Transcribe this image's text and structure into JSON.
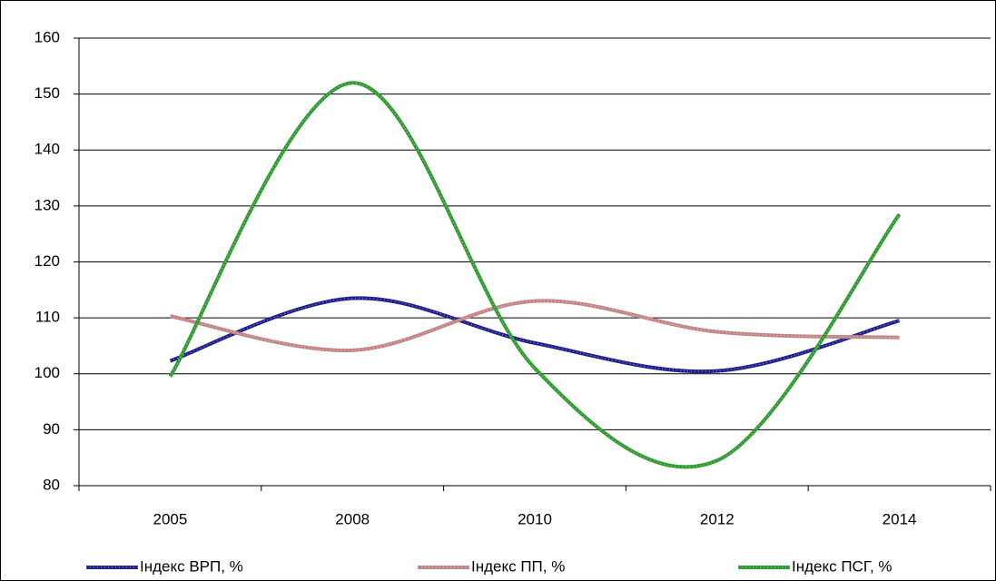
{
  "chart_data": {
    "type": "line",
    "categories": [
      "2005",
      "2008",
      "2010",
      "2012",
      "2014"
    ],
    "series": [
      {
        "name": "Індекс ВРП, %",
        "color": "#1f1f8c",
        "values": [
          102.3,
          113.5,
          105.5,
          100.5,
          109.5
        ]
      },
      {
        "name": "Індекс ПП, %",
        "color": "#c48484",
        "values": [
          110.3,
          104.2,
          113,
          107.5,
          106.5
        ]
      },
      {
        "name": "Індекс ПСГ, %",
        "color": "#2f9a2f",
        "values": [
          99.5,
          152,
          101,
          84.5,
          128.5
        ]
      }
    ],
    "ylim": [
      80,
      160
    ],
    "yticks": [
      80,
      90,
      100,
      110,
      120,
      130,
      140,
      150,
      160
    ],
    "grid": true,
    "legend": "bottom",
    "smooth": true
  }
}
